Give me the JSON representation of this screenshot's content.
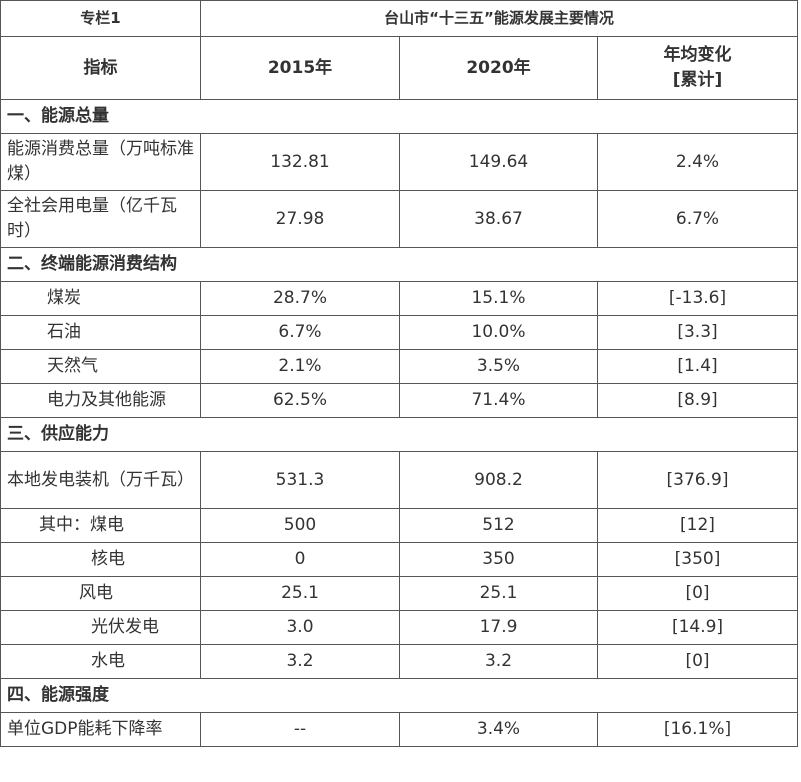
{
  "header": {
    "column_tag": "专栏1",
    "title": "台山市“十三五”能源发展主要情况",
    "col_indicator": "指标",
    "col_2015": "2015年",
    "col_2020": "2020年",
    "col_change_line1": "年均变化",
    "col_change_line2": "[累计]"
  },
  "sections": [
    {
      "title": "一、能源总量",
      "rows": [
        {
          "label": "能源消费总量（万吨标准煤）",
          "v2015": "132.81",
          "v2020": "149.64",
          "change": "2.4%"
        },
        {
          "label": "全社会用电量（亿千瓦时）",
          "v2015": "27.98",
          "v2020": "38.67",
          "change": "6.7%"
        }
      ]
    },
    {
      "title": "二、终端能源消费结构",
      "rows": [
        {
          "label": "煤炭",
          "v2015": "28.7%",
          "v2020": "15.1%",
          "change": "[-13.6]"
        },
        {
          "label": "石油",
          "v2015": "6.7%",
          "v2020": "10.0%",
          "change": "[3.3]"
        },
        {
          "label": "天然气",
          "v2015": "2.1%",
          "v2020": "3.5%",
          "change": "[1.4]"
        },
        {
          "label": "电力及其他能源",
          "v2015": "62.5%",
          "v2020": "71.4%",
          "change": "[8.9]"
        }
      ]
    },
    {
      "title": "三、供应能力",
      "rows": [
        {
          "label": "本地发电装机（万千瓦）",
          "v2015": "531.3",
          "v2020": "908.2",
          "change": "[376.9]"
        },
        {
          "label": "其中：煤电",
          "v2015": "500",
          "v2020": "512",
          "change": "[12]"
        },
        {
          "label": "核电",
          "v2015": "0",
          "v2020": "350",
          "change": "[350]"
        },
        {
          "label": "风电",
          "v2015": "25.1",
          "v2020": "25.1",
          "change": "[0]"
        },
        {
          "label": "光伏发电",
          "v2015": "3.0",
          "v2020": "17.9",
          "change": "[14.9]"
        },
        {
          "label": "水电",
          "v2015": "3.2",
          "v2020": "3.2",
          "change": "[0]"
        }
      ]
    },
    {
      "title": "四、能源强度",
      "rows": [
        {
          "label": "单位GDP能耗下降率",
          "v2015": "--",
          "v2020": "3.4%",
          "change": "[16.1%]"
        }
      ]
    }
  ]
}
